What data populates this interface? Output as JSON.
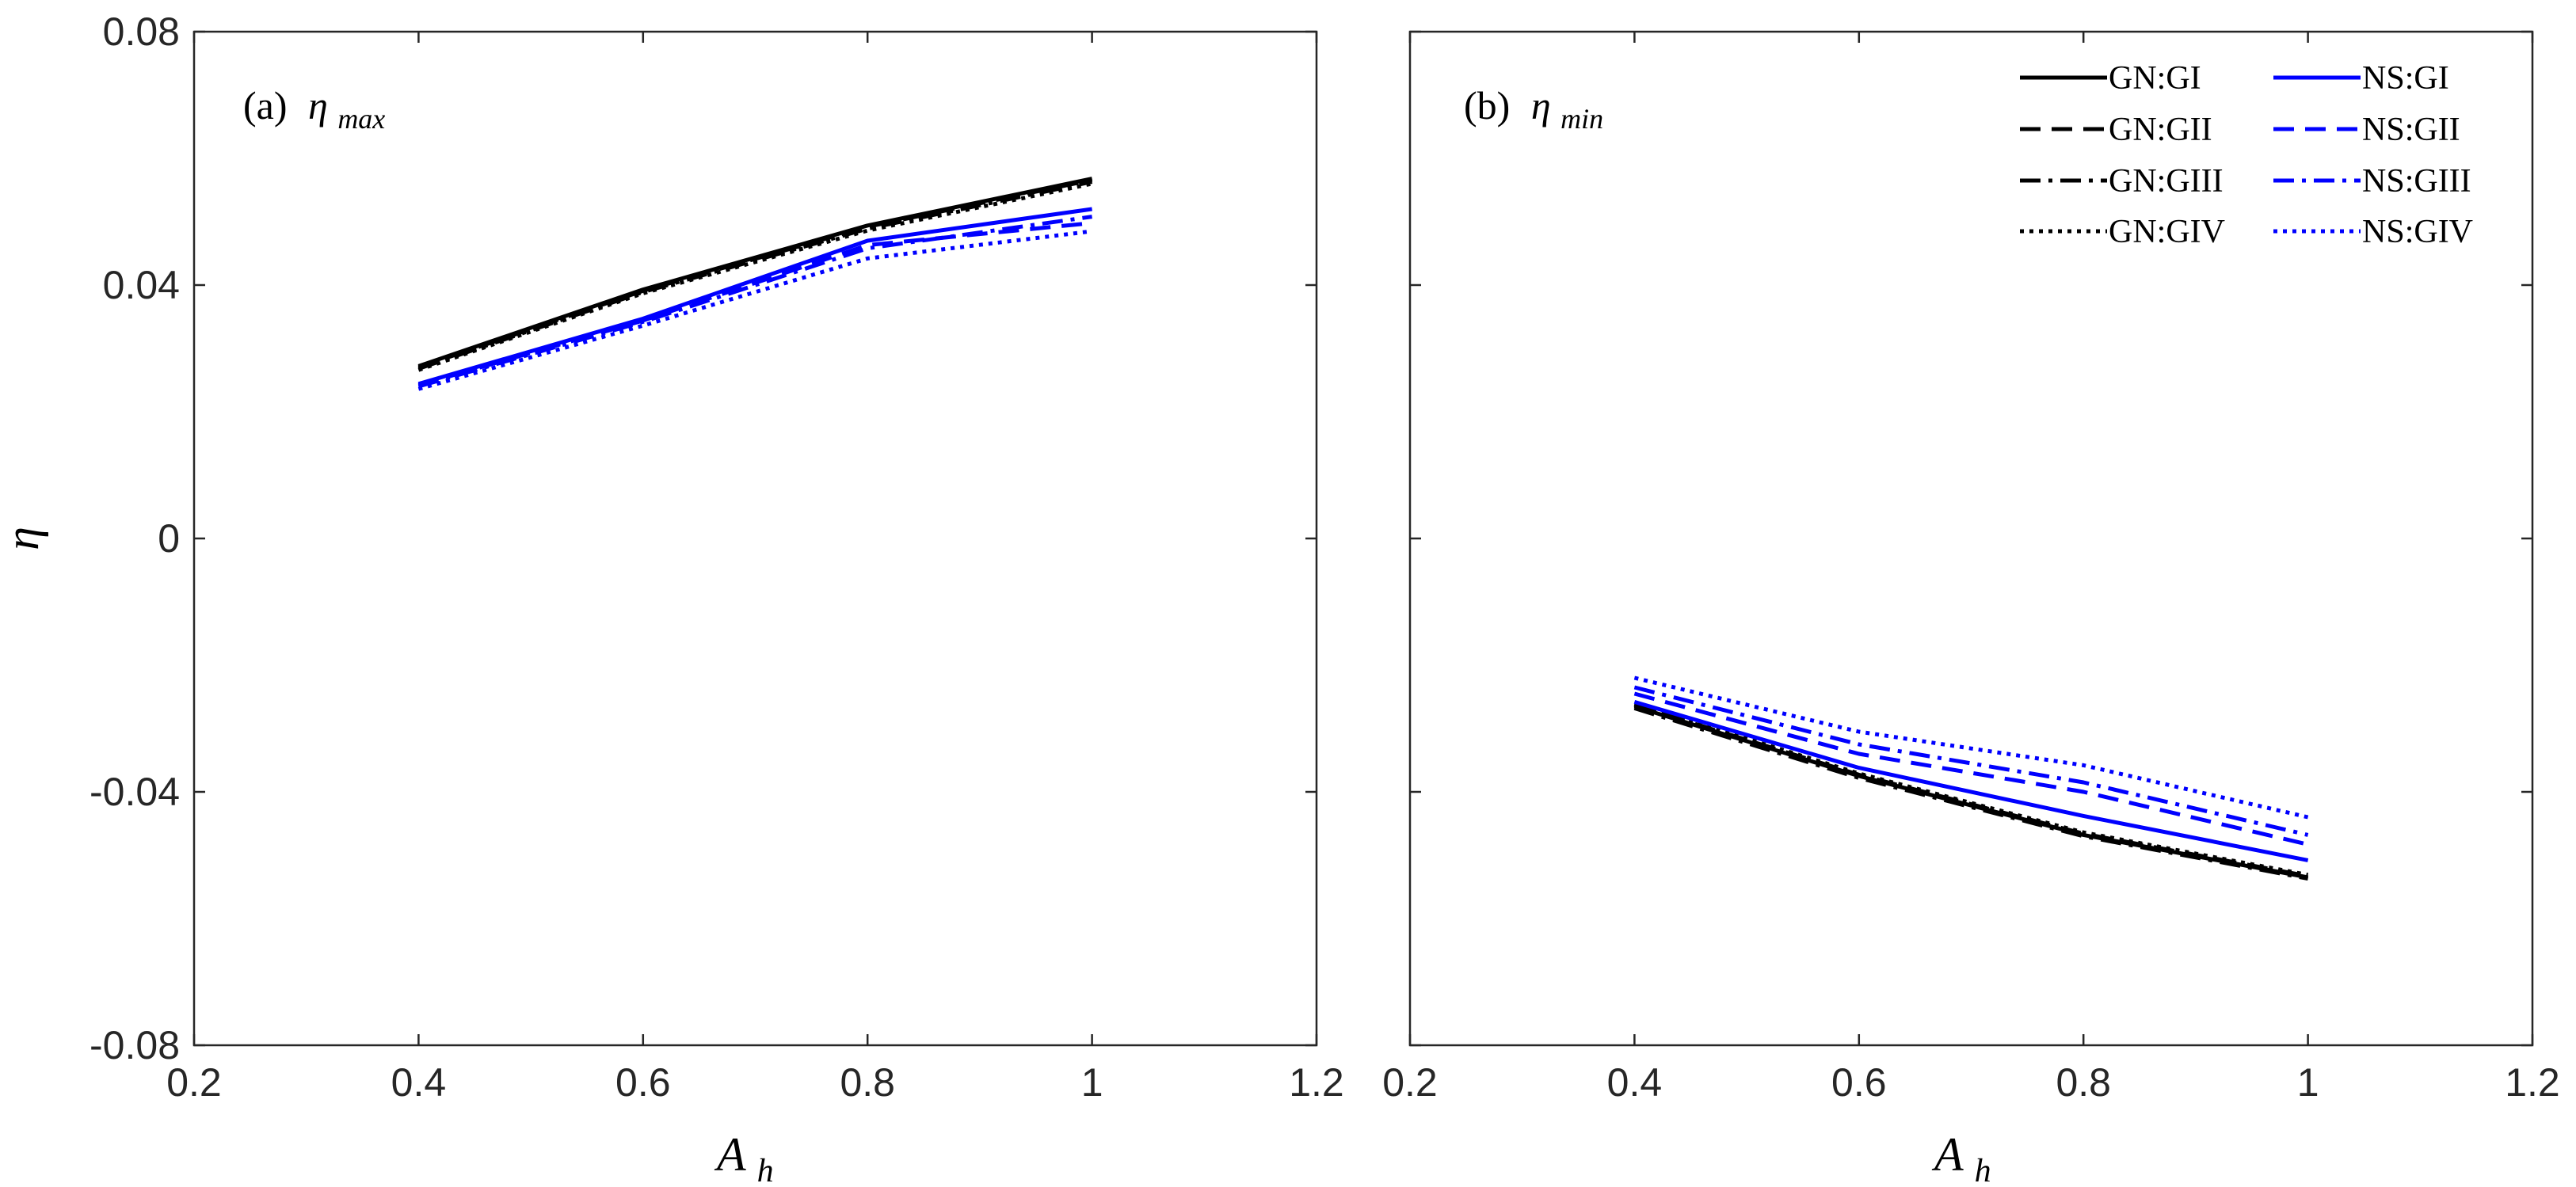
{
  "chart_data": [
    {
      "type": "line",
      "panel": "a",
      "title": "(a) η_max",
      "title_prefix": "(a)",
      "title_symbol": "η",
      "title_subscript": "max",
      "xlabel_base": "A",
      "xlabel_sub": "h",
      "ylabel": "η",
      "xlim": [
        0.2,
        1.2
      ],
      "ylim": [
        -0.08,
        0.08
      ],
      "xticks": [
        "0.2",
        "0.4",
        "0.6",
        "0.8",
        "1",
        "1.2"
      ],
      "yticks": [
        "0.08",
        "0.04",
        "0",
        "-0.04",
        "-0.08"
      ],
      "x": [
        0.4,
        0.6,
        0.8,
        1.0
      ],
      "series": [
        {
          "name": "GN:GI",
          "color": "#000000",
          "dash": "solid",
          "values": [
            0.0272,
            0.0393,
            0.0494,
            0.0568
          ]
        },
        {
          "name": "GN:GII",
          "color": "#000000",
          "dash": "dashed",
          "values": [
            0.027,
            0.0391,
            0.0492,
            0.0566
          ]
        },
        {
          "name": "GN:GIII",
          "color": "#000000",
          "dash": "dashdot",
          "values": [
            0.0268,
            0.0389,
            0.0489,
            0.0563
          ]
        },
        {
          "name": "GN:GIV",
          "color": "#000000",
          "dash": "dotted",
          "values": [
            0.0266,
            0.0387,
            0.0486,
            0.056
          ]
        },
        {
          "name": "NS:GI",
          "color": "#0000ff",
          "dash": "solid",
          "values": [
            0.0244,
            0.0347,
            0.047,
            0.052
          ]
        },
        {
          "name": "NS:GII",
          "color": "#0000ff",
          "dash": "dashed",
          "values": [
            0.0242,
            0.0344,
            0.0463,
            0.0498
          ]
        },
        {
          "name": "NS:GIII",
          "color": "#0000ff",
          "dash": "dashdot",
          "values": [
            0.024,
            0.0342,
            0.0458,
            0.0508
          ]
        },
        {
          "name": "NS:GIV",
          "color": "#0000ff",
          "dash": "dotted",
          "values": [
            0.0236,
            0.0336,
            0.0442,
            0.0485
          ]
        }
      ]
    },
    {
      "type": "line",
      "panel": "b",
      "title": "(b) η_min",
      "title_prefix": "(b)",
      "title_symbol": "η",
      "title_subscript": "min",
      "xlabel_base": "A",
      "xlabel_sub": "h",
      "xlim": [
        0.2,
        1.2
      ],
      "ylim": [
        -0.08,
        0.08
      ],
      "xticks": [
        "0.2",
        "0.4",
        "0.6",
        "0.8",
        "1",
        "1.2"
      ],
      "x": [
        0.4,
        0.6,
        0.8,
        1.0
      ],
      "legend_position": "top-right",
      "series": [
        {
          "name": "GN:GI",
          "color": "#000000",
          "dash": "solid",
          "values": [
            -0.0265,
            -0.0375,
            -0.0468,
            -0.0535
          ]
        },
        {
          "name": "GN:GII",
          "color": "#000000",
          "dash": "dashed",
          "values": [
            -0.0263,
            -0.0373,
            -0.0466,
            -0.0533
          ]
        },
        {
          "name": "GN:GIII",
          "color": "#000000",
          "dash": "dashdot",
          "values": [
            -0.0268,
            -0.0378,
            -0.047,
            -0.0537
          ]
        },
        {
          "name": "GN:GIV",
          "color": "#000000",
          "dash": "dotted",
          "values": [
            -0.0261,
            -0.0371,
            -0.0464,
            -0.0531
          ]
        },
        {
          "name": "NS:GI",
          "color": "#0000ff",
          "dash": "solid",
          "values": [
            -0.0258,
            -0.0362,
            -0.0438,
            -0.0508
          ]
        },
        {
          "name": "NS:GII",
          "color": "#0000ff",
          "dash": "dashed",
          "values": [
            -0.0245,
            -0.034,
            -0.04,
            -0.0483
          ]
        },
        {
          "name": "NS:GIII",
          "color": "#0000ff",
          "dash": "dashdot",
          "values": [
            -0.0235,
            -0.0325,
            -0.0385,
            -0.0468
          ]
        },
        {
          "name": "NS:GIV",
          "color": "#0000ff",
          "dash": "dotted",
          "values": [
            -0.022,
            -0.0305,
            -0.0358,
            -0.044
          ]
        }
      ]
    }
  ]
}
